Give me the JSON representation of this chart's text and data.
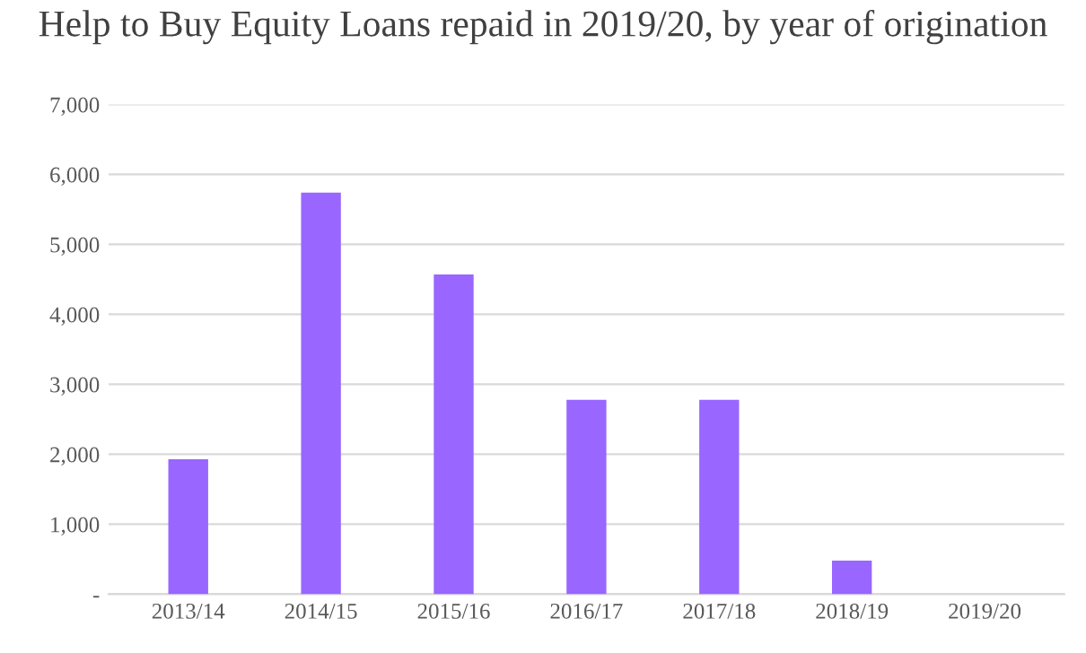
{
  "chart_data": {
    "type": "bar",
    "title": "Help to Buy Equity Loans repaid in 2019/20, by year of origination",
    "categories": [
      "2013/14",
      "2014/15",
      "2015/16",
      "2016/17",
      "2017/18",
      "2018/19",
      "2019/20"
    ],
    "values": [
      1930,
      5740,
      4570,
      2780,
      2780,
      480,
      0
    ],
    "color": "#9966ff",
    "ylim": [
      0,
      7000
    ],
    "yticks": [
      {
        "value": 0,
        "label": "-"
      },
      {
        "value": 1000,
        "label": "1,000"
      },
      {
        "value": 2000,
        "label": "2,000"
      },
      {
        "value": 3000,
        "label": "3,000"
      },
      {
        "value": 4000,
        "label": "4,000"
      },
      {
        "value": 5000,
        "label": "5,000"
      },
      {
        "value": 6000,
        "label": "6,000"
      },
      {
        "value": 7000,
        "label": "7,000"
      }
    ],
    "grid": "y"
  }
}
